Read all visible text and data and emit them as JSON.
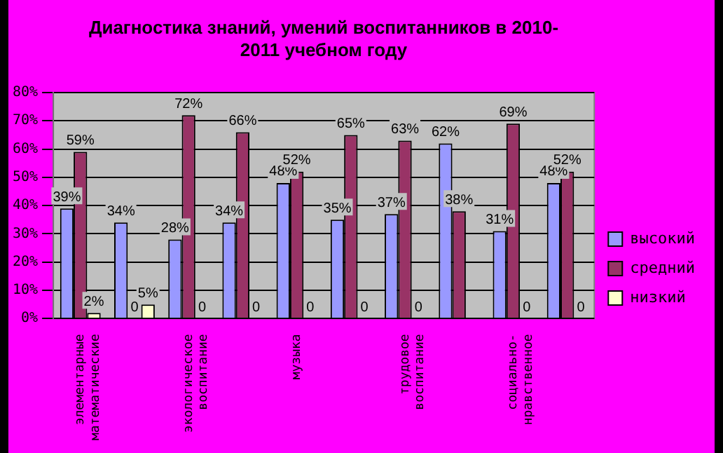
{
  "chart_data": {
    "type": "bar",
    "title": "Диагностика знаний, умений воспитанников в 2010-2011 учебном году",
    "categories": [
      "элементарные математические",
      null,
      "экологическое воспитание",
      null,
      "музыка",
      null,
      "трудовое воспитание",
      null,
      "социально-нравственное",
      null
    ],
    "series": [
      {
        "name": "высокий",
        "color": "#9999ff",
        "values": [
          39,
          34,
          28,
          34,
          48,
          35,
          37,
          62,
          31,
          48
        ],
        "value_labels": [
          "39%",
          "34%",
          "28%",
          "34%",
          "48%",
          "35%",
          "37%",
          "62%",
          "31%",
          "48%"
        ]
      },
      {
        "name": "средний",
        "color": "#993366",
        "values": [
          59,
          0,
          72,
          66,
          52,
          65,
          63,
          38,
          69,
          52
        ],
        "value_labels": [
          "59%",
          "0",
          "72%",
          "66%",
          "52%",
          "65%",
          "63%",
          "38%",
          "69%",
          "52%"
        ]
      },
      {
        "name": "низкий",
        "color": "#ffffcc",
        "values": [
          2,
          5,
          0,
          0,
          0,
          0,
          0,
          0,
          0,
          0
        ],
        "value_labels": [
          "2%",
          "5%",
          "0",
          "0",
          "0",
          "0",
          "0",
          null,
          "0",
          "0"
        ]
      }
    ],
    "ylim": [
      0,
      80
    ],
    "yticks": [
      {
        "value": 0,
        "label": "0%"
      },
      {
        "value": 10,
        "label": "10%"
      },
      {
        "value": 20,
        "label": "20%"
      },
      {
        "value": 30,
        "label": "30%"
      },
      {
        "value": 40,
        "label": "40%"
      },
      {
        "value": 50,
        "label": "50%"
      },
      {
        "value": 60,
        "label": "60%"
      },
      {
        "value": 70,
        "label": "70%"
      },
      {
        "value": 80,
        "label": "80%"
      }
    ],
    "grid": "y",
    "legend": "right"
  }
}
